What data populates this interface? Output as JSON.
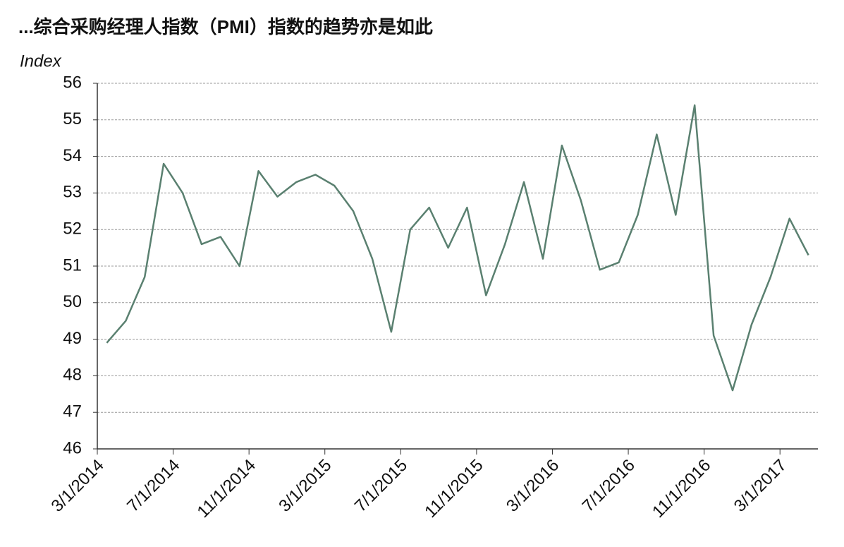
{
  "chart_data": {
    "type": "line",
    "title": "...综合采购经理人指数（PMI）指数的趋势亦是如此",
    "y_label": "Index",
    "x": [
      "3/1/2014",
      "4/1/2014",
      "5/1/2014",
      "6/1/2014",
      "7/1/2014",
      "8/1/2014",
      "9/1/2014",
      "10/1/2014",
      "11/1/2014",
      "12/1/2014",
      "1/1/2015",
      "2/1/2015",
      "3/1/2015",
      "4/1/2015",
      "5/1/2015",
      "6/1/2015",
      "7/1/2015",
      "8/1/2015",
      "9/1/2015",
      "10/1/2015",
      "11/1/2015",
      "12/1/2015",
      "1/1/2016",
      "2/1/2016",
      "3/1/2016",
      "4/1/2016",
      "5/1/2016",
      "6/1/2016",
      "7/1/2016",
      "8/1/2016",
      "9/1/2016",
      "10/1/2016",
      "11/1/2016",
      "12/1/2016",
      "1/1/2017",
      "2/1/2017",
      "3/1/2017",
      "4/1/2017"
    ],
    "series": [
      {
        "color": "#5a8070",
        "values": [
          48.9,
          49.5,
          50.7,
          53.8,
          53.0,
          51.6,
          51.8,
          51.0,
          53.6,
          52.9,
          53.3,
          53.5,
          53.2,
          52.5,
          51.2,
          49.2,
          52.0,
          52.6,
          51.5,
          52.6,
          50.2,
          51.6,
          53.3,
          51.2,
          54.3,
          52.8,
          50.9,
          51.1,
          52.4,
          54.6,
          52.4,
          55.4,
          49.1,
          47.6,
          49.4,
          50.7,
          52.3,
          51.3
        ]
      }
    ],
    "xlim": [
      "3/1/2014",
      "5/1/2017"
    ],
    "xticks": [
      "3/1/2014",
      "7/1/2014",
      "11/1/2014",
      "3/1/2015",
      "7/1/2015",
      "11/1/2015",
      "3/1/2016",
      "7/1/2016",
      "11/1/2016",
      "3/1/2017"
    ],
    "ylim": [
      46,
      56
    ],
    "yticks": [
      46,
      47,
      48,
      49,
      50,
      51,
      52,
      53,
      54,
      55,
      56
    ],
    "grid": true
  }
}
